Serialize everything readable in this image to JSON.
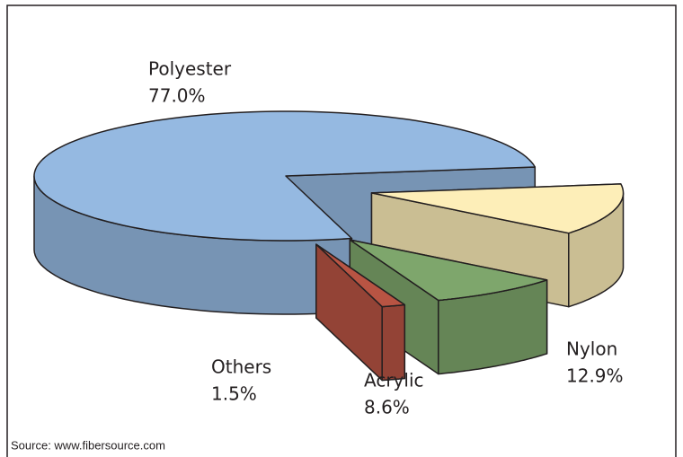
{
  "chart_data": {
    "type": "pie3d",
    "categories": [
      "Nylon",
      "Acrylic",
      "Others",
      "Polyester"
    ],
    "values": [
      12.9,
      8.6,
      1.5,
      77.0
    ],
    "value_labels": [
      "12.9%",
      "8.6%",
      "1.5%",
      "77.0%"
    ],
    "colors": [
      "#fdeeb8",
      "#7ea66c",
      "#b85443",
      "#95b9e1"
    ],
    "source": "Source: www.fibersource.com"
  }
}
